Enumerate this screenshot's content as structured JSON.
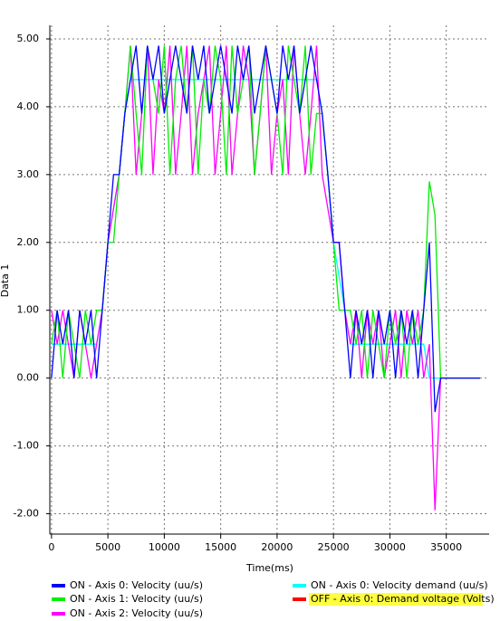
{
  "chart_data": {
    "type": "line",
    "x_label": "Time(ms)",
    "y_label": "Data 1",
    "xlim": [
      -150,
      38800
    ],
    "ylim": [
      -2.3,
      5.2
    ],
    "xticks": [
      0,
      5000,
      10000,
      15000,
      20000,
      25000,
      30000,
      35000
    ],
    "yticks": [
      {
        "value": -2,
        "label": "-2.00"
      },
      {
        "value": -1,
        "label": "-1.00"
      },
      {
        "value": 0,
        "label": "0.00"
      },
      {
        "value": 1,
        "label": "1.00"
      },
      {
        "value": 2,
        "label": "2.00"
      },
      {
        "value": 3,
        "label": "3.00"
      },
      {
        "value": 4,
        "label": "4.00"
      },
      {
        "value": 5,
        "label": "5.00"
      }
    ],
    "grid": true,
    "x": [
      0,
      500,
      1000,
      1500,
      2000,
      2500,
      3000,
      3500,
      4000,
      4500,
      5000,
      5500,
      6000,
      6500,
      7000,
      7500,
      8000,
      8500,
      9000,
      9500,
      10000,
      10500,
      11000,
      11500,
      12000,
      12500,
      13000,
      13500,
      14000,
      14500,
      15000,
      15500,
      16000,
      16500,
      17000,
      17500,
      18000,
      18500,
      19000,
      19500,
      20000,
      20500,
      21000,
      21500,
      22000,
      22500,
      23000,
      23500,
      24000,
      24500,
      25000,
      25500,
      26000,
      26500,
      27000,
      27500,
      28000,
      28500,
      29000,
      29500,
      30000,
      30500,
      31000,
      31500,
      32000,
      32500,
      33000,
      33500,
      34000,
      34500,
      35000,
      35500,
      36000,
      36500,
      37000,
      37500,
      38000
    ],
    "series": [
      {
        "name": "OFF - Axis 0: Demand voltage (Volts)",
        "color": "#ff0000",
        "values": [
          null,
          null,
          null,
          null,
          null,
          null,
          null,
          null,
          null,
          null,
          null,
          null,
          null,
          null,
          null,
          null,
          null,
          null,
          null,
          null,
          null,
          null,
          null,
          null,
          null,
          null,
          null,
          null,
          null,
          null,
          null,
          null,
          null,
          null,
          null,
          null,
          null,
          null,
          null,
          null,
          null,
          null,
          null,
          null,
          null,
          null,
          null,
          null,
          null,
          null,
          null,
          null,
          null,
          null,
          null,
          null,
          null,
          null,
          null,
          null,
          null,
          null,
          null,
          null,
          null,
          null,
          null,
          null,
          null,
          null,
          null,
          null,
          null,
          null,
          null,
          null,
          null
        ]
      },
      {
        "name": "ON  - Axis 0: Velocity demand (uu/s)",
        "color": "#00ffff",
        "values": [
          0.5,
          0.5,
          0.5,
          0.5,
          0.5,
          0.5,
          0.5,
          0.5,
          0.5,
          1,
          2,
          2.5,
          3,
          3.9,
          4.4,
          4.4,
          4.4,
          4.4,
          4.4,
          4.4,
          4.4,
          4.4,
          4.4,
          4.4,
          4.4,
          4.4,
          4.4,
          4.4,
          4.4,
          4.4,
          4.4,
          4.4,
          4.4,
          4.4,
          4.4,
          4.4,
          4.4,
          4.4,
          4.4,
          4.4,
          4.4,
          4.4,
          4.4,
          4.4,
          4.4,
          4.4,
          4.4,
          4.4,
          3.9,
          3,
          2,
          1.5,
          1,
          0.5,
          0.5,
          0.5,
          0.5,
          0.5,
          0.5,
          0.5,
          0.5,
          0.5,
          0.5,
          0.5,
          0.5,
          0.5,
          0.5,
          0,
          0,
          0,
          0,
          0,
          0,
          0,
          0,
          0,
          0
        ]
      },
      {
        "name": "ON  - Axis 2: Velocity (uu/s)",
        "color": "#ff00ff",
        "values": [
          1,
          0.5,
          1,
          0.5,
          0,
          1,
          0.5,
          0,
          0.5,
          1,
          2,
          2.5,
          3,
          3.9,
          4.9,
          3,
          3.9,
          4.9,
          3,
          4.4,
          3.9,
          4.9,
          3,
          3.9,
          4.9,
          3,
          3.9,
          4.4,
          4.9,
          3,
          3.9,
          4.9,
          3,
          3.9,
          4.9,
          4.4,
          3,
          3.9,
          4.9,
          3,
          3.9,
          4.4,
          3,
          4.9,
          3.9,
          3,
          3.9,
          4.9,
          3,
          2.5,
          2,
          2,
          1,
          0.5,
          1,
          0,
          1,
          0.5,
          1,
          0,
          0.5,
          1,
          0,
          1,
          0.5,
          1,
          0,
          0.5,
          -1.95,
          0,
          0,
          0,
          0,
          0,
          0,
          0,
          0
        ]
      },
      {
        "name": "ON  - Axis 1: Velocity (uu/s)",
        "color": "#00ee00",
        "values": [
          0.5,
          1,
          0,
          1,
          0.5,
          0,
          1,
          0.5,
          1,
          1,
          2,
          2,
          3,
          3.9,
          4.9,
          3.9,
          3,
          4.9,
          4.4,
          3.9,
          4.9,
          3,
          4.4,
          4.9,
          3.9,
          4.9,
          3,
          4.4,
          3.9,
          4.9,
          4.4,
          3,
          4.9,
          3.9,
          4.4,
          4.9,
          3,
          3.9,
          4.9,
          4.4,
          3.9,
          3,
          4.9,
          4.4,
          3.9,
          4.9,
          3,
          3.9,
          3.9,
          3,
          2,
          1,
          1,
          1,
          0.5,
          1,
          0,
          1,
          0.5,
          0,
          1,
          0.5,
          1,
          0,
          1,
          0.5,
          1,
          2.9,
          2.4,
          0,
          0,
          0,
          0,
          0,
          0,
          0,
          0
        ]
      },
      {
        "name": "ON  - Axis 0: Velocity (uu/s)",
        "color": "#0000ff",
        "values": [
          0,
          1,
          0.5,
          1,
          0,
          1,
          0.5,
          1,
          0,
          1,
          2,
          3,
          3,
          3.9,
          4.4,
          4.9,
          3.9,
          4.9,
          4.4,
          4.9,
          3.9,
          4.4,
          4.9,
          4.4,
          3.9,
          4.9,
          4.4,
          4.9,
          3.9,
          4.4,
          4.9,
          4.4,
          3.9,
          4.9,
          4.4,
          4.9,
          3.9,
          4.4,
          4.9,
          4.4,
          3.9,
          4.9,
          4.4,
          4.9,
          3.9,
          4.4,
          4.9,
          4.4,
          3.9,
          3,
          2,
          2,
          1,
          0,
          1,
          0.5,
          1,
          0,
          1,
          0.5,
          1,
          0,
          1,
          0.5,
          1,
          0,
          1,
          2,
          -0.5,
          0,
          0,
          0,
          0,
          0,
          0,
          0,
          0
        ]
      }
    ],
    "legend_order": [
      4,
      3,
      2,
      1,
      0
    ]
  }
}
